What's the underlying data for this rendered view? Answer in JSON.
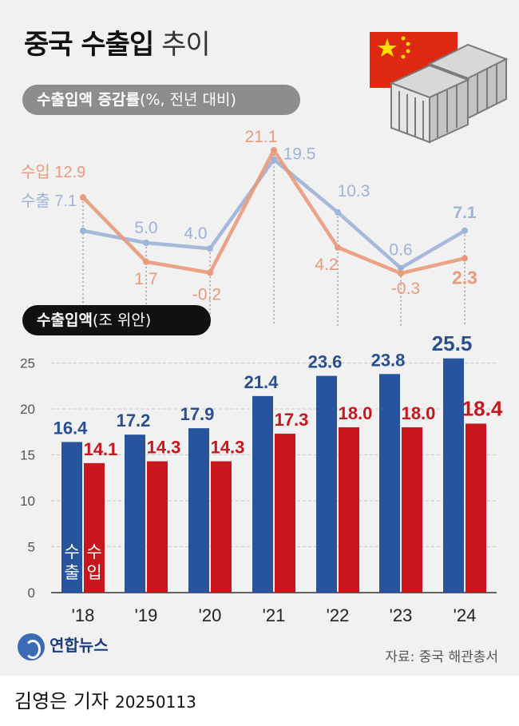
{
  "title": {
    "bold": "중국 수출입",
    "light": "추이"
  },
  "growth_section": {
    "label_bold": "수출입액 증감률",
    "label_rest": "(%, 전년 대비)"
  },
  "amount_section": {
    "label_bold": "수출입액",
    "label_rest": "(조 위안)"
  },
  "series_labels": {
    "import": "수입",
    "export": "수출"
  },
  "bar_labels": {
    "export_vertical": [
      "수",
      "출"
    ],
    "import_vertical": [
      "수",
      "입"
    ]
  },
  "colors": {
    "export_line": "#9db3d8",
    "import_line": "#e99a7a",
    "export_bar": "#27549d",
    "import_bar": "#c8161d",
    "export_text": "#2a4f8f",
    "import_text": "#c8161d"
  },
  "icons": [
    "china-flag-icon",
    "shipping-crate-icon"
  ],
  "chart_data": [
    {
      "type": "line",
      "categories": [
        "'18",
        "'19",
        "'20",
        "'21",
        "'22",
        "'23",
        "'24"
      ],
      "series": [
        {
          "name": "수출",
          "values": [
            7.1,
            5.0,
            4.0,
            19.5,
            10.3,
            0.6,
            7.1
          ]
        },
        {
          "name": "수입",
          "values": [
            12.9,
            1.7,
            -0.2,
            21.1,
            4.2,
            -0.3,
            2.3
          ]
        }
      ],
      "title": "수출입액 증감률(%, 전년 대비)"
    },
    {
      "type": "bar",
      "categories": [
        "'18",
        "'19",
        "'20",
        "'21",
        "'22",
        "'23",
        "'24"
      ],
      "series": [
        {
          "name": "수출",
          "values": [
            16.4,
            17.2,
            17.9,
            21.4,
            23.6,
            23.8,
            25.5
          ]
        },
        {
          "name": "수입",
          "values": [
            14.1,
            14.3,
            14.3,
            17.3,
            18.0,
            18.0,
            18.4
          ]
        }
      ],
      "title": "수출입액(조 위안)",
      "yticks": [
        "0",
        "5",
        "10",
        "15",
        "20",
        "25"
      ],
      "ylim": [
        0,
        25
      ]
    }
  ],
  "source": "자료: 중국 해관총서",
  "logo_text": "연합뉴스",
  "credit": {
    "name": "김영은 기자",
    "date": "20250113"
  }
}
